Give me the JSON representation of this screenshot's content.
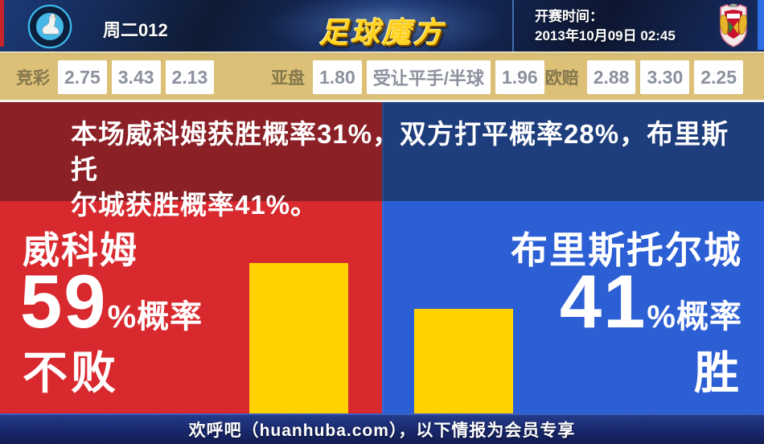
{
  "header": {
    "match_code": "周二012",
    "site_logo": "足球魔方",
    "kickoff_label": "开赛时间：",
    "kickoff_datetime": "2013年10月09日 02:45",
    "home_crest": "wycombe-wanderers-crest",
    "away_crest": "bristol-city-crest"
  },
  "odds_bar": {
    "jingcai": {
      "label": "竞彩",
      "home": "2.75",
      "draw": "3.43",
      "away": "2.13"
    },
    "yapan": {
      "label": "亚盘",
      "home": "1.80",
      "handicap": "受让平手/半球",
      "away": "1.96"
    },
    "oupei": {
      "label": "欧赔",
      "home": "2.88",
      "draw": "3.30",
      "away": "2.25"
    }
  },
  "analysis": {
    "summary_line1": "本场威科姆获胜概率31%，双方打平概率28%，布里斯托",
    "summary_line2": "尔城获胜概率41%。",
    "home": {
      "team_name": "威科姆",
      "percent": "59",
      "suffix": "%概率",
      "outcome": "不败"
    },
    "away": {
      "team_name": "布里斯托尔城",
      "percent": "41",
      "suffix": "%概率",
      "outcome": "胜"
    }
  },
  "footer": {
    "text": "欢呼吧（huanhuba.com），以下情报为会员专享"
  },
  "colors": {
    "home_bright": "#d8292f",
    "home_dark": "#8b2026",
    "away_bright": "#2c5ed4",
    "away_dark": "#1e3d7c",
    "bar_yellow": "#ffd200",
    "odds_bg": "#dcc078",
    "header_navy": "#122a60",
    "logo_gold": "#ffd21e"
  },
  "chart_data": {
    "type": "bar",
    "categories": [
      "威科姆 不败",
      "布里斯托尔城 胜"
    ],
    "values": [
      59,
      41
    ],
    "unit": "%",
    "title": "本场威科姆获胜概率31%，双方打平概率28%，布里斯托尔城获胜概率41%。",
    "probabilities": {
      "home_win_pct": 31,
      "draw_pct": 28,
      "away_win_pct": 41
    },
    "bar_color": "#ffd200",
    "grid": false,
    "legend_position": "none"
  }
}
